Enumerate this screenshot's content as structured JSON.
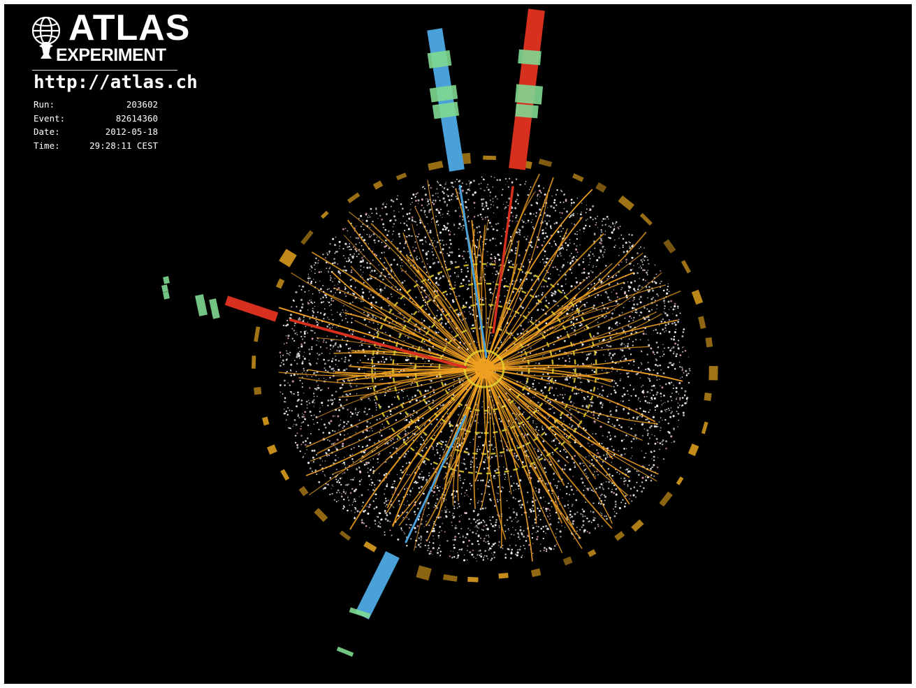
{
  "branding": {
    "title": "ATLAS",
    "subtitle": "EXPERIMENT",
    "url": "http://atlas.ch",
    "logo_icon": "atlas-globe-icon"
  },
  "event_info": {
    "run_label": "Run:",
    "run_value": "203602",
    "event_label": "Event:",
    "event_value": "82614360",
    "date_label": "Date:",
    "date_value": "2012-05-18",
    "time_label": "Time:",
    "time_value": "29:28:11 CEST"
  },
  "colors": {
    "background": "#000000",
    "track": "#f0a020",
    "hit": "#ffffff",
    "electron": "#d8301e",
    "muon": "#4aa0d8",
    "muon_chamber": "#80d890",
    "calorimeter": "#c8901a"
  }
}
